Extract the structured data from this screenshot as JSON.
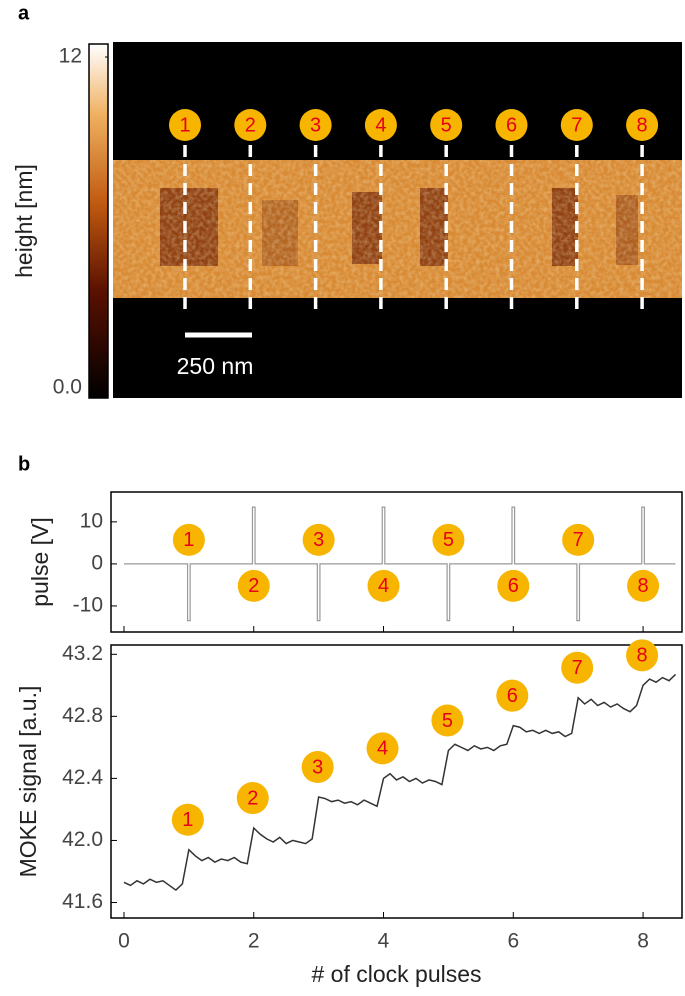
{
  "panel_a": {
    "label": "a",
    "colorbar": {
      "label": "height [nm]",
      "lim": [
        0,
        12
      ],
      "ticks": [
        {
          "value": 0,
          "label": "0.0"
        },
        12
      ]
    },
    "markers": [
      "1",
      "2",
      "3",
      "4",
      "5",
      "6",
      "7",
      "8"
    ],
    "scale_bar": "250 nm"
  },
  "panel_b_label": "b",
  "chart_data": [
    {
      "type": "line",
      "ylabel": "pulse [V]",
      "color": "#999999",
      "x": [
        0,
        0.98,
        0.98,
        1.02,
        1.02,
        1.98,
        1.98,
        2.02,
        2.02,
        2.98,
        2.98,
        3.02,
        3.02,
        3.98,
        3.98,
        4.02,
        4.02,
        4.98,
        4.98,
        5.02,
        5.02,
        5.98,
        5.98,
        6.02,
        6.02,
        6.98,
        6.98,
        7.02,
        7.02,
        7.98,
        7.98,
        8.02,
        8.02,
        8.5
      ],
      "values": [
        0,
        0,
        -13.5,
        -13.5,
        0,
        0,
        13.5,
        13.5,
        0,
        0,
        -13.5,
        -13.5,
        0,
        0,
        13.5,
        13.5,
        0,
        0,
        -13.5,
        -13.5,
        0,
        0,
        13.5,
        13.5,
        0,
        0,
        -13.5,
        -13.5,
        0,
        0,
        13.5,
        13.5,
        0,
        0
      ],
      "xlim": [
        -0.2,
        8.6
      ],
      "ylim": [
        -16.2,
        17.1
      ],
      "yticks": [
        -10,
        0,
        10
      ],
      "annotations": [
        "1",
        "2",
        "3",
        "4",
        "5",
        "6",
        "7",
        "8"
      ]
    },
    {
      "type": "line",
      "ylabel": "MOKE signal [a.u.]",
      "xlabel": "# of clock pulses",
      "color": "#333333",
      "x": [
        0,
        0.1,
        0.2,
        0.3,
        0.4,
        0.5,
        0.6,
        0.7,
        0.8,
        0.9,
        1,
        1.1,
        1.2,
        1.3,
        1.4,
        1.5,
        1.6,
        1.7,
        1.8,
        1.9,
        2,
        2.1,
        2.2,
        2.3,
        2.4,
        2.5,
        2.6,
        2.7,
        2.8,
        2.9,
        3,
        3.1,
        3.2,
        3.3,
        3.4,
        3.5,
        3.6,
        3.7,
        3.8,
        3.9,
        4,
        4.1,
        4.2,
        4.3,
        4.4,
        4.5,
        4.6,
        4.7,
        4.8,
        4.9,
        5,
        5.1,
        5.2,
        5.3,
        5.4,
        5.5,
        5.6,
        5.7,
        5.8,
        5.9,
        6,
        6.1,
        6.2,
        6.3,
        6.4,
        6.5,
        6.6,
        6.7,
        6.8,
        6.9,
        7,
        7.1,
        7.2,
        7.3,
        7.4,
        7.5,
        7.6,
        7.7,
        7.8,
        7.9,
        8,
        8.1,
        8.2,
        8.3,
        8.4,
        8.5
      ],
      "values": [
        41.73,
        41.71,
        41.74,
        41.72,
        41.75,
        41.73,
        41.74,
        41.71,
        41.68,
        41.72,
        41.94,
        41.9,
        41.87,
        41.89,
        41.86,
        41.88,
        41.87,
        41.89,
        41.86,
        41.85,
        42.08,
        42.04,
        42.01,
        41.99,
        42.02,
        41.98,
        42.0,
        41.99,
        41.98,
        42.01,
        42.28,
        42.27,
        42.25,
        42.26,
        42.24,
        42.25,
        42.23,
        42.26,
        42.24,
        42.22,
        42.4,
        42.43,
        42.39,
        42.41,
        42.38,
        42.4,
        42.37,
        42.39,
        42.38,
        42.36,
        42.58,
        42.62,
        42.6,
        42.58,
        42.61,
        42.59,
        42.6,
        42.58,
        42.61,
        42.62,
        42.74,
        42.73,
        42.7,
        42.71,
        42.69,
        42.71,
        42.69,
        42.7,
        42.67,
        42.69,
        42.92,
        42.88,
        42.91,
        42.87,
        42.89,
        42.86,
        42.88,
        42.85,
        42.83,
        42.87,
        43.0,
        43.04,
        43.02,
        43.05,
        43.03,
        43.07
      ],
      "xlim": [
        -0.2,
        8.6
      ],
      "ylim": [
        41.5,
        43.26
      ],
      "xticks": [
        0,
        2,
        4,
        6,
        8
      ],
      "yticks": [
        41.6,
        {
          "value": 42,
          "label": "42.0"
        },
        42.4,
        42.8,
        43.2
      ],
      "annotations": [
        "1",
        "2",
        "3",
        "4",
        "5",
        "6",
        "7",
        "8"
      ]
    }
  ]
}
